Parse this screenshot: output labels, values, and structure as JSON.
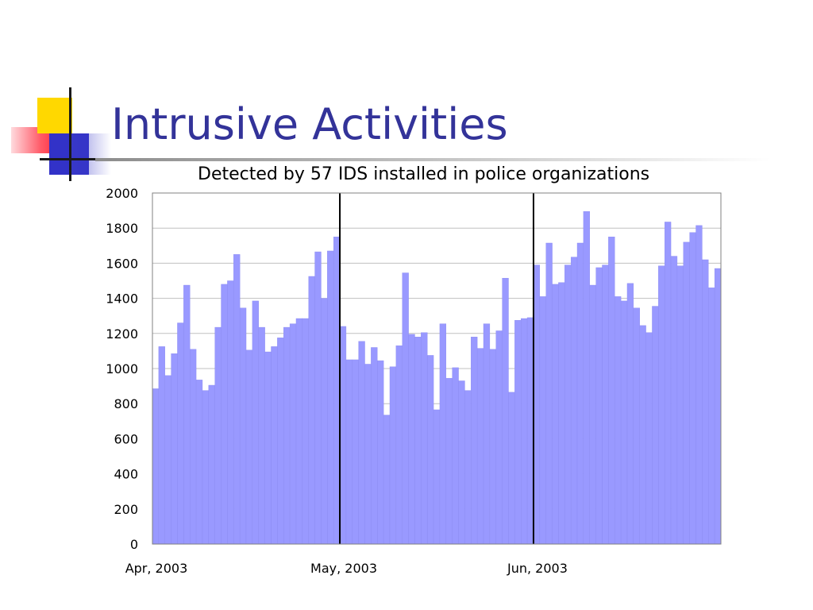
{
  "slide": {
    "title": "Intrusive Activities"
  },
  "chart_data": {
    "type": "bar",
    "title": "Detected by 57 IDS installed in police organizations",
    "xlabel": "",
    "ylabel": "",
    "ylim": [
      0,
      2000
    ],
    "y_ticks": [
      0,
      200,
      400,
      600,
      800,
      1000,
      1200,
      1400,
      1600,
      1800,
      2000
    ],
    "grid": true,
    "legend": "none",
    "bar_color": "#9999ff",
    "x_labels": [
      {
        "index": 0,
        "label": "Apr, 2003"
      },
      {
        "index": 30,
        "label": "May, 2003"
      },
      {
        "index": 61,
        "label": "Jun, 2003"
      }
    ],
    "month_separators": [
      30,
      61
    ],
    "values": [
      885,
      1125,
      960,
      1085,
      1260,
      1475,
      1110,
      935,
      875,
      905,
      1235,
      1480,
      1500,
      1650,
      1345,
      1105,
      1385,
      1235,
      1095,
      1125,
      1175,
      1235,
      1255,
      1285,
      1285,
      1525,
      1665,
      1400,
      1670,
      1750,
      1240,
      1050,
      1050,
      1155,
      1025,
      1120,
      1045,
      735,
      1010,
      1130,
      1545,
      1195,
      1180,
      1205,
      1075,
      765,
      1255,
      945,
      1005,
      930,
      875,
      1180,
      1115,
      1255,
      1110,
      1215,
      1515,
      865,
      1275,
      1285,
      1290,
      1590,
      1410,
      1715,
      1480,
      1490,
      1590,
      1635,
      1715,
      1895,
      1475,
      1575,
      1590,
      1750,
      1410,
      1385,
      1485,
      1345,
      1245,
      1205,
      1355,
      1585,
      1835,
      1640,
      1585,
      1720,
      1775,
      1815,
      1620,
      1460,
      1570
    ]
  }
}
